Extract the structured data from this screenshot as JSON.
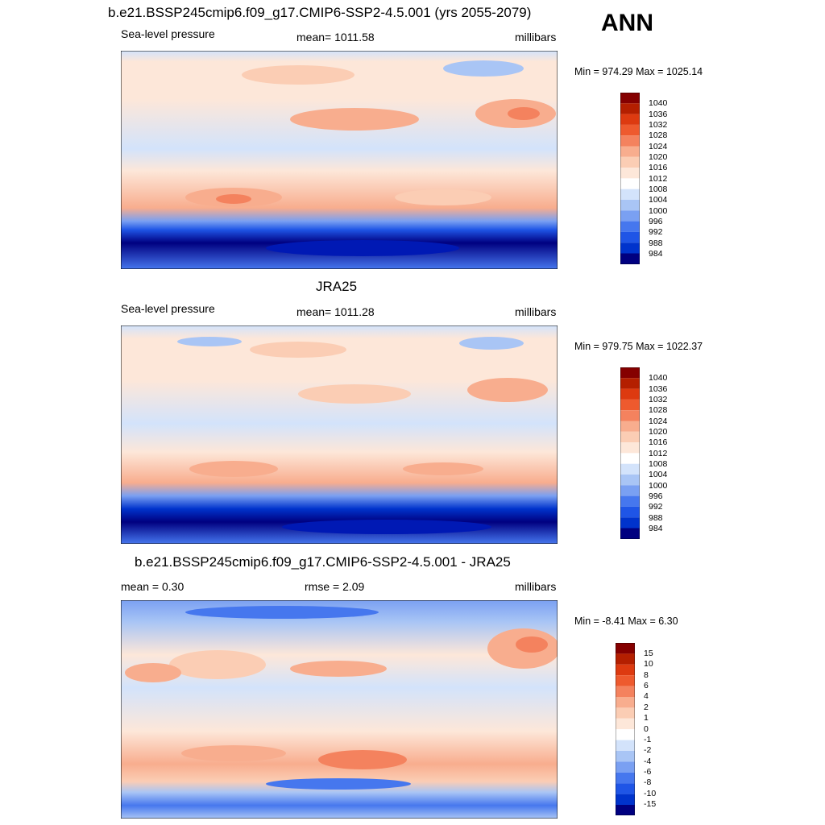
{
  "season": "ANN",
  "colors": {
    "slp": [
      "#000080",
      "#0019b4",
      "#0033cc",
      "#1f55e6",
      "#4677ee",
      "#7aa0f2",
      "#a9c5f5",
      "#d3e3fb",
      "#ffffff",
      "#fde7d9",
      "#fbcdb4",
      "#f8ad8e",
      "#f4825e",
      "#ee5a2e",
      "#dd3a10",
      "#b41f00",
      "#850000"
    ],
    "diff": [
      "#000080",
      "#0019b4",
      "#0033cc",
      "#1f55e6",
      "#4677ee",
      "#7aa0f2",
      "#a9c5f5",
      "#d3e3fb",
      "#ffffff",
      "#fde7d9",
      "#fbcdb4",
      "#f8ad8e",
      "#f4825e",
      "#ee5a2e",
      "#dd3a10",
      "#b41f00",
      "#850000"
    ]
  },
  "panels": [
    {
      "title": "b.e21.BSSP245cmip6.f09_g17.CMIP6-SSP2-4.5.001 (yrs 2055-2079)",
      "left": "Sea-level pressure",
      "center": "mean= 1011.58",
      "right": "millibars",
      "minmax": "Min = 974.29 Max = 1025.14",
      "colorbar_labels": [
        "1040",
        "1036",
        "1032",
        "1028",
        "1024",
        "1020",
        "1016",
        "1012",
        "1008",
        "1004",
        "1000",
        "996",
        "992",
        "988",
        "984"
      ]
    },
    {
      "title": "JRA25",
      "left": "Sea-level pressure",
      "center": "mean= 1011.28",
      "right": "millibars",
      "minmax": "Min = 979.75 Max = 1022.37",
      "colorbar_labels": [
        "1040",
        "1036",
        "1032",
        "1028",
        "1024",
        "1020",
        "1016",
        "1012",
        "1008",
        "1004",
        "1000",
        "996",
        "992",
        "988",
        "984"
      ]
    },
    {
      "title": "b.e21.BSSP245cmip6.f09_g17.CMIP6-SSP2-4.5.001 - JRA25",
      "left": "mean =   0.30",
      "center": "rmse =   2.09",
      "right": "millibars",
      "minmax": "Min =  -8.41 Max =   6.30",
      "colorbar_labels": [
        "15",
        "10",
        "8",
        "6",
        "4",
        "2",
        "1",
        "0",
        "-1",
        "-2",
        "-4",
        "-6",
        "-8",
        "-10",
        "-15"
      ]
    }
  ]
}
